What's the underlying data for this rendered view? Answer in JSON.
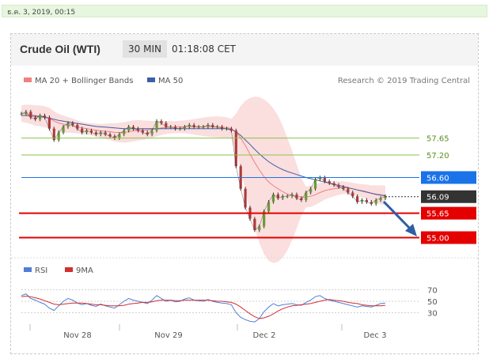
{
  "top_bar": {
    "datetime": "ธ.ค. 3, 2019, 00:15"
  },
  "header": {
    "title": "Crude Oil (WTI)",
    "timeframe": "30 MIN",
    "time": "01:18:08 CET"
  },
  "legend": {
    "ma20_bb": "MA 20 + Bollinger Bands",
    "ma50": "MA 50",
    "credit": "Research © 2019 Trading Central",
    "rsi": "RSI",
    "rsi_ma": "9MA"
  },
  "colors": {
    "price": "#333333",
    "bollinger_fill": "#f9d0d0",
    "ma20": "#f08080",
    "ma50": "#3d5fa8",
    "green_level": "#8bc34a",
    "blue_level": "#1a73e8",
    "red_level": "#e50000",
    "current_price": "#333333",
    "arrow": "#2f5fa3",
    "rsi": "#4f7fd9",
    "rsi_ma": "#d32f2f"
  },
  "chart_data": [
    {
      "type": "line",
      "title": "Crude Oil (WTI)",
      "timeframe": "30 MIN",
      "x_labels": [
        "Nov 28",
        "Nov 29",
        "Dec 2",
        "Dec 3"
      ],
      "ylim": [
        54.8,
        58.8
      ],
      "levels": [
        {
          "value": 57.65,
          "label": "57.65",
          "kind": "green"
        },
        {
          "value": 57.2,
          "label": "57.20",
          "kind": "green"
        },
        {
          "value": 56.6,
          "label": "56.60",
          "kind": "blue"
        },
        {
          "value": 56.09,
          "label": "56.09",
          "kind": "current"
        },
        {
          "value": 55.65,
          "label": "55.65",
          "kind": "red"
        },
        {
          "value": 55.0,
          "label": "55.00",
          "kind": "red"
        }
      ],
      "series": [
        {
          "name": "Price",
          "values": [
            58.3,
            58.35,
            58.2,
            58.15,
            58.25,
            58.2,
            57.9,
            57.6,
            57.8,
            57.95,
            58.05,
            58.0,
            57.9,
            57.8,
            57.85,
            57.8,
            57.75,
            57.8,
            57.75,
            57.7,
            57.65,
            57.75,
            57.85,
            57.95,
            57.9,
            57.85,
            57.8,
            57.75,
            57.85,
            58.1,
            58.05,
            57.95,
            57.95,
            57.9,
            57.9,
            57.95,
            58.0,
            57.95,
            57.95,
            57.95,
            58.0,
            57.95,
            57.95,
            57.9,
            57.9,
            57.85,
            56.9,
            56.3,
            55.8,
            55.5,
            55.2,
            55.3,
            55.7,
            55.95,
            56.15,
            56.05,
            56.1,
            56.1,
            56.15,
            56.05,
            56.0,
            56.2,
            56.3,
            56.55,
            56.6,
            56.5,
            56.45,
            56.4,
            56.35,
            56.3,
            56.2,
            56.1,
            55.95,
            56.0,
            55.95,
            55.9,
            56.0,
            56.05,
            56.1
          ]
        },
        {
          "name": "MA 20",
          "values": [
            58.3,
            58.3,
            58.28,
            58.25,
            58.24,
            58.22,
            58.18,
            58.1,
            58.05,
            58.02,
            58.0,
            57.98,
            57.95,
            57.92,
            57.9,
            57.88,
            57.86,
            57.84,
            57.83,
            57.82,
            57.8,
            57.8,
            57.8,
            57.82,
            57.84,
            57.86,
            57.86,
            57.87,
            57.88,
            57.9,
            57.92,
            57.93,
            57.94,
            57.94,
            57.95,
            57.95,
            57.95,
            57.95,
            57.95,
            57.95,
            57.95,
            57.95,
            57.95,
            57.94,
            57.93,
            57.9,
            57.8,
            57.65,
            57.45,
            57.22,
            57.0,
            56.8,
            56.62,
            56.48,
            56.38,
            56.3,
            56.22,
            56.16,
            56.12,
            56.1,
            56.08,
            56.08,
            56.1,
            56.14,
            56.2,
            56.25,
            56.28,
            56.3,
            56.32,
            56.33,
            56.32,
            56.3,
            56.27,
            56.25,
            56.22,
            56.18,
            56.16,
            56.14,
            56.12
          ]
        },
        {
          "name": "MA 50",
          "values": [
            58.25,
            58.25,
            58.24,
            58.23,
            58.22,
            58.2,
            58.18,
            58.15,
            58.12,
            58.1,
            58.08,
            58.06,
            58.04,
            58.02,
            58.0,
            57.98,
            57.96,
            57.95,
            57.94,
            57.93,
            57.92,
            57.91,
            57.9,
            57.9,
            57.9,
            57.9,
            57.9,
            57.9,
            57.9,
            57.9,
            57.9,
            57.9,
            57.9,
            57.9,
            57.9,
            57.9,
            57.9,
            57.9,
            57.9,
            57.9,
            57.9,
            57.9,
            57.9,
            57.9,
            57.9,
            57.88,
            57.82,
            57.72,
            57.6,
            57.48,
            57.35,
            57.23,
            57.12,
            57.02,
            56.94,
            56.87,
            56.81,
            56.76,
            56.72,
            56.68,
            56.64,
            56.6,
            56.57,
            56.54,
            56.51,
            56.48,
            56.45,
            56.42,
            56.39,
            56.36,
            56.33,
            56.3,
            56.27,
            56.24,
            56.21,
            56.18,
            56.15,
            56.13,
            56.11
          ]
        }
      ]
    },
    {
      "type": "line",
      "title": "RSI",
      "ylim": [
        10,
        90
      ],
      "ticks": [
        70,
        50,
        30
      ],
      "series": [
        {
          "name": "RSI",
          "values": [
            60,
            63,
            55,
            52,
            48,
            45,
            38,
            34,
            42,
            50,
            55,
            52,
            47,
            44,
            46,
            43,
            41,
            45,
            42,
            40,
            38,
            44,
            50,
            55,
            52,
            50,
            48,
            46,
            52,
            60,
            55,
            50,
            52,
            49,
            50,
            54,
            56,
            52,
            51,
            50,
            53,
            50,
            48,
            47,
            46,
            44,
            30,
            22,
            18,
            15,
            14,
            20,
            32,
            40,
            46,
            42,
            44,
            45,
            46,
            44,
            43,
            48,
            52,
            58,
            60,
            55,
            52,
            50,
            48,
            46,
            44,
            42,
            40,
            42,
            41,
            40,
            43,
            46,
            47
          ]
        },
        {
          "name": "9MA",
          "values": [
            58,
            59,
            58,
            56,
            54,
            51,
            48,
            45,
            44,
            45,
            46,
            47,
            47,
            47,
            46,
            45,
            44,
            44,
            43,
            42,
            42,
            42,
            43,
            45,
            46,
            47,
            48,
            48,
            49,
            51,
            52,
            52,
            52,
            51,
            51,
            52,
            52,
            52,
            52,
            52,
            52,
            51,
            50,
            50,
            49,
            48,
            45,
            40,
            34,
            28,
            23,
            20,
            21,
            24,
            28,
            33,
            37,
            40,
            42,
            43,
            44,
            45,
            46,
            48,
            50,
            52,
            53,
            52,
            51,
            50,
            48,
            47,
            46,
            44,
            43,
            42,
            42,
            42,
            43
          ]
        }
      ]
    }
  ]
}
